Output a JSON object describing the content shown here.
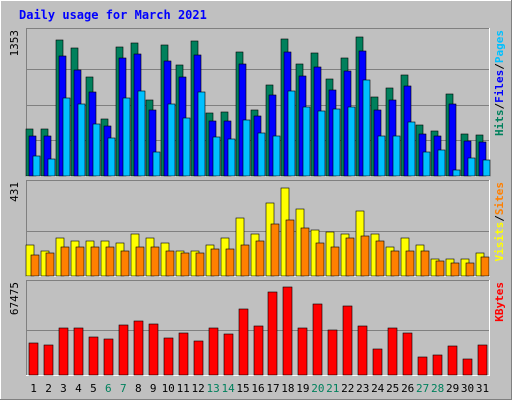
{
  "colors": {
    "frame": "#C0C0C0",
    "panel_bg": "#C0C0C0",
    "title": "#0000FF",
    "axis_text": "#000000",
    "weekend_day": "#00805C",
    "gridline": "#808080",
    "hits": "#00805C",
    "files": "#0000FF",
    "pages": "#00C0FF",
    "visits": "#FFFF00",
    "sites": "#FF8000",
    "kbytes": "#FF0000"
  },
  "chart_data": [
    {
      "type": "bar",
      "title": "Daily usage for March 2021",
      "ymax_label": "1353",
      "ymax": 1353,
      "categories": [
        "1",
        "2",
        "3",
        "4",
        "5",
        "6",
        "7",
        "8",
        "9",
        "10",
        "11",
        "12",
        "13",
        "14",
        "15",
        "16",
        "17",
        "18",
        "19",
        "20",
        "21",
        "22",
        "23",
        "24",
        "25",
        "26",
        "27",
        "28",
        "29",
        "30",
        "31"
      ],
      "weekend_days": [
        "6",
        "7",
        "13",
        "14",
        "20",
        "21",
        "27",
        "28"
      ],
      "legend": [
        {
          "label": "Hits",
          "color_key": "hits"
        },
        {
          "label": "/",
          "color_key": "axis_text"
        },
        {
          "label": "Files",
          "color_key": "files"
        },
        {
          "label": "/",
          "color_key": "axis_text"
        },
        {
          "label": "Pages",
          "color_key": "pages"
        }
      ],
      "series": [
        {
          "name": "Hits",
          "color_key": "hits",
          "values": [
            450,
            450,
            1300,
            1220,
            940,
            540,
            1230,
            1270,
            720,
            1250,
            1060,
            1290,
            600,
            610,
            1180,
            630,
            870,
            1310,
            1070,
            1170,
            920,
            1120,
            1320,
            750,
            840,
            960,
            490,
            430,
            780,
            400,
            390
          ]
        },
        {
          "name": "Files",
          "color_key": "files",
          "values": [
            380,
            380,
            1140,
            1010,
            800,
            480,
            1120,
            1160,
            630,
            1100,
            940,
            1150,
            520,
            520,
            1070,
            570,
            770,
            1180,
            950,
            1040,
            820,
            1000,
            1190,
            630,
            720,
            860,
            400,
            380,
            690,
            330,
            320
          ]
        },
        {
          "name": "Pages",
          "color_key": "pages",
          "values": [
            190,
            160,
            740,
            690,
            500,
            360,
            740,
            810,
            230,
            690,
            550,
            800,
            370,
            350,
            530,
            410,
            380,
            810,
            660,
            620,
            640,
            660,
            910,
            380,
            380,
            510,
            230,
            250,
            60,
            170,
            150
          ]
        }
      ]
    },
    {
      "type": "bar",
      "ymax_label": "431",
      "ymax": 431,
      "categories": [
        "1",
        "2",
        "3",
        "4",
        "5",
        "6",
        "7",
        "8",
        "9",
        "10",
        "11",
        "12",
        "13",
        "14",
        "15",
        "16",
        "17",
        "18",
        "19",
        "20",
        "21",
        "22",
        "23",
        "24",
        "25",
        "26",
        "27",
        "28",
        "29",
        "30",
        "31"
      ],
      "legend": [
        {
          "label": "Visits",
          "color_key": "visits"
        },
        {
          "label": "/",
          "color_key": "axis_text"
        },
        {
          "label": "Sites",
          "color_key": "sites"
        }
      ],
      "series": [
        {
          "name": "Visits",
          "color_key": "visits",
          "values": [
            150,
            120,
            180,
            170,
            170,
            170,
            160,
            200,
            180,
            160,
            120,
            120,
            150,
            180,
            280,
            200,
            350,
            420,
            320,
            220,
            210,
            200,
            310,
            200,
            140,
            180,
            150,
            80,
            80,
            80,
            110
          ]
        },
        {
          "name": "Sites",
          "color_key": "sites",
          "values": [
            100,
            110,
            140,
            140,
            140,
            140,
            120,
            140,
            140,
            120,
            110,
            110,
            130,
            130,
            150,
            170,
            250,
            270,
            230,
            160,
            140,
            180,
            190,
            170,
            120,
            120,
            120,
            70,
            60,
            60,
            90
          ]
        }
      ]
    },
    {
      "type": "bar",
      "ymax_label": "67475",
      "ymax": 67475,
      "categories": [
        "1",
        "2",
        "3",
        "4",
        "5",
        "6",
        "7",
        "8",
        "9",
        "10",
        "11",
        "12",
        "13",
        "14",
        "15",
        "16",
        "17",
        "18",
        "19",
        "20",
        "21",
        "22",
        "23",
        "24",
        "25",
        "26",
        "27",
        "28",
        "29",
        "30",
        "31"
      ],
      "legend": [
        {
          "label": "KBytes",
          "color_key": "kbytes"
        }
      ],
      "series": [
        {
          "name": "KBytes",
          "color_key": "kbytes",
          "values": [
            24000,
            23000,
            36000,
            36000,
            29000,
            27000,
            38000,
            41000,
            39000,
            28000,
            32000,
            26000,
            36000,
            31000,
            50000,
            37000,
            63000,
            67000,
            36000,
            54000,
            34000,
            52000,
            37000,
            20000,
            36000,
            32000,
            14000,
            15000,
            22000,
            12000,
            23000
          ]
        }
      ]
    }
  ]
}
